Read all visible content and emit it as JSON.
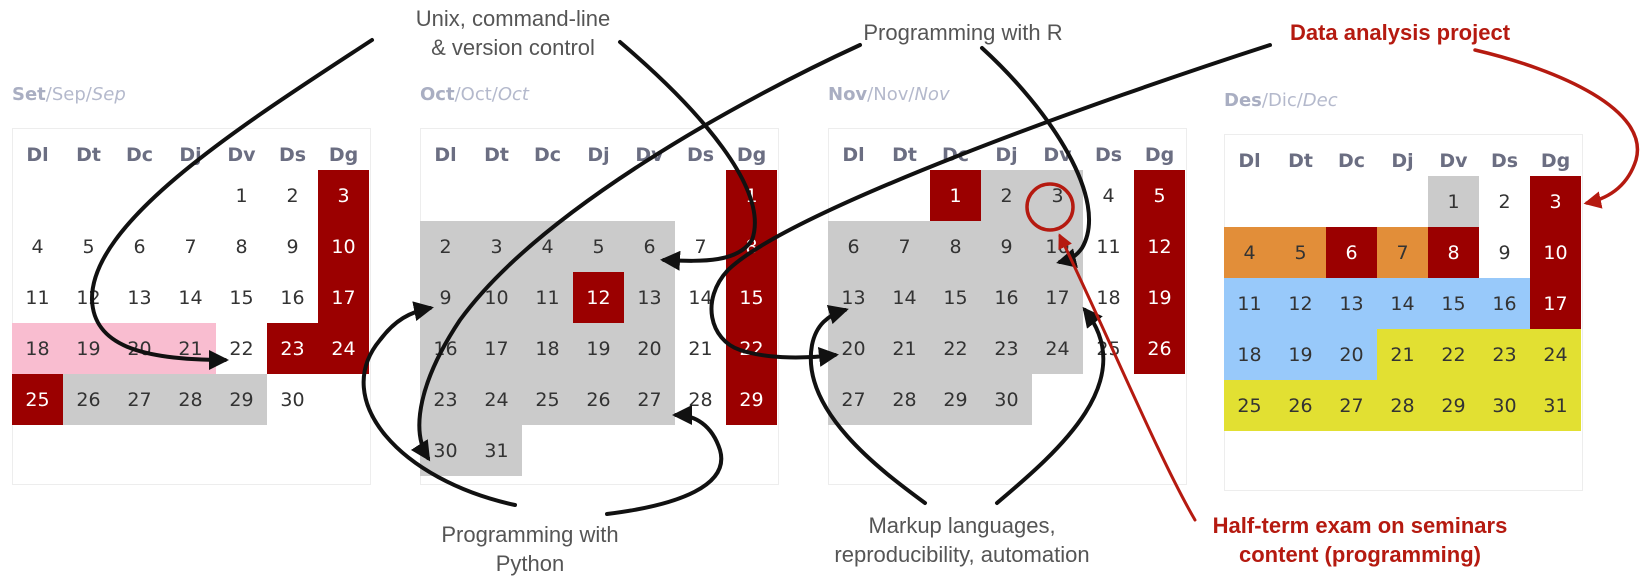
{
  "colors": {
    "gray": "#cbcbcb",
    "holiday": "#9b0000",
    "pink": "#f9bdd0",
    "orange": "#e28e39",
    "blue": "#98c9fa",
    "yellow": "#e2e032",
    "arrow": "#111111",
    "accent": "#b51a10"
  },
  "weekdays": [
    "Dl",
    "Dt",
    "Dc",
    "Dj",
    "Dv",
    "Ds",
    "Dg"
  ],
  "months": [
    {
      "title": {
        "main": "Set",
        "alt": "Sep",
        "alt2": "Sep"
      },
      "start_offset": 4,
      "days": 30,
      "highlights": {
        "holiday": [
          3,
          10,
          17,
          23,
          24,
          25
        ],
        "gray": [
          26,
          27,
          28,
          29
        ],
        "pink": [
          18,
          19,
          20,
          21
        ]
      }
    },
    {
      "title": {
        "main": "Oct",
        "alt": "Oct",
        "alt2": "Oct"
      },
      "start_offset": 6,
      "days": 31,
      "highlights": {
        "holiday": [
          1,
          8,
          12,
          15,
          22,
          29
        ],
        "gray": [
          2,
          3,
          4,
          5,
          6,
          9,
          10,
          11,
          13,
          16,
          17,
          18,
          19,
          20,
          23,
          24,
          25,
          26,
          27,
          30,
          31
        ]
      }
    },
    {
      "title": {
        "main": "Nov",
        "alt": "Nov",
        "alt2": "Nov"
      },
      "start_offset": 2,
      "days": 30,
      "highlights": {
        "holiday": [
          1,
          5,
          12,
          19,
          26
        ],
        "gray": [
          2,
          3,
          6,
          7,
          8,
          9,
          10,
          13,
          14,
          15,
          16,
          17,
          20,
          21,
          22,
          23,
          24,
          27,
          28,
          29,
          30
        ],
        "circled": [
          3
        ]
      }
    },
    {
      "title": {
        "main": "Des",
        "alt": "Dic",
        "alt2": "Dec"
      },
      "start_offset": 4,
      "days": 31,
      "highlights": {
        "holiday": [
          3,
          6,
          8,
          10,
          17
        ],
        "gray": [
          1
        ],
        "orange": [
          4,
          5,
          7
        ],
        "blue": [
          11,
          12,
          13,
          14,
          15,
          16,
          18,
          19,
          20
        ],
        "yellow": [
          21,
          22,
          23,
          24,
          25,
          26,
          27,
          28,
          29,
          30,
          31
        ]
      }
    }
  ],
  "labels": {
    "unix": [
      "Unix, command-line",
      "& version control"
    ],
    "r": [
      "Programming with R"
    ],
    "project": [
      "Data analysis project"
    ],
    "python": [
      "Programming with",
      "Python"
    ],
    "markup": [
      "Markup languages,",
      "reproducibility, automation"
    ],
    "exam": [
      "Half-term exam on seminars",
      "content (programming)"
    ]
  }
}
